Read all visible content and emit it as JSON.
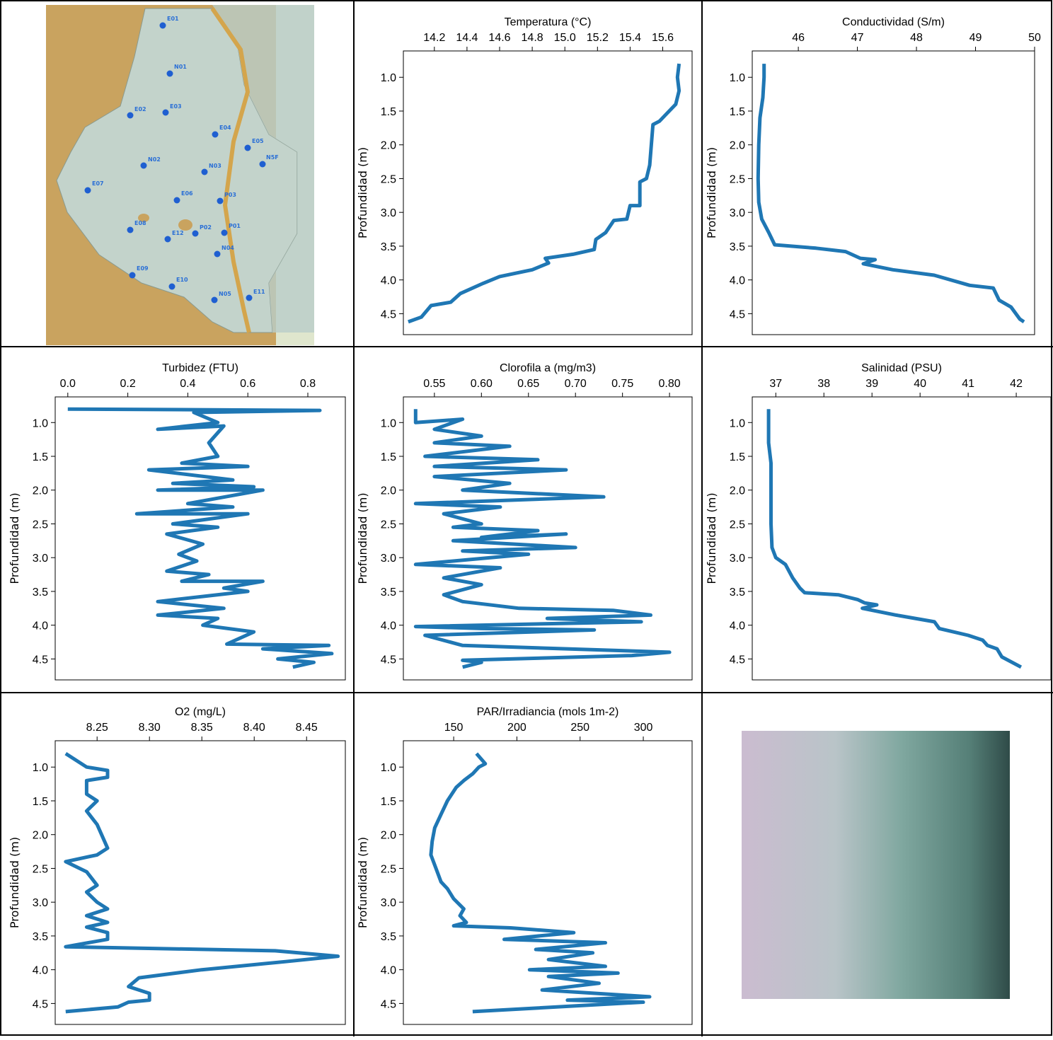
{
  "map": {
    "stations": [
      "E01",
      "N01",
      "E03",
      "E02",
      "E04",
      "E05",
      "N5F",
      "N02",
      "N03",
      "E07",
      "E06",
      "P03",
      "E08",
      "P01",
      "E12",
      "P02",
      "N04",
      "E09",
      "E10",
      "N05",
      "E11"
    ]
  },
  "chart_data": [
    {
      "type": "line",
      "xlabel": "Temperatura (°C)",
      "ylabel": "Profundidad (m)",
      "color": "#1f77b4",
      "xlim": [
        14.01,
        15.78
      ],
      "ylim": [
        4.81,
        0.61
      ],
      "xticks": [
        14.2,
        14.4,
        14.6,
        14.8,
        {
          "value": 15,
          "label": "15.0"
        },
        15.2,
        15.4,
        15.6
      ],
      "yticks": [
        {
          "value": 1,
          "label": "1.0"
        },
        1.5,
        {
          "value": 2,
          "label": "2.0"
        },
        2.5,
        {
          "value": 3,
          "label": "3.0"
        },
        3.5,
        {
          "value": 4,
          "label": "4.0"
        },
        4.5
      ],
      "x": [
        15.7,
        15.69,
        15.7,
        15.68,
        15.62,
        15.58,
        15.54,
        15.53,
        15.52,
        15.5,
        15.46,
        15.46,
        15.4,
        15.38,
        15.3,
        15.25,
        15.19,
        15.18,
        15.05,
        14.88,
        14.9,
        14.8,
        14.6,
        14.5,
        14.36,
        14.3,
        14.18,
        14.12,
        14.04
      ],
      "y": [
        0.8,
        1.0,
        1.2,
        1.4,
        1.55,
        1.65,
        1.7,
        2.0,
        2.3,
        2.5,
        2.55,
        2.9,
        2.9,
        3.1,
        3.12,
        3.3,
        3.4,
        3.55,
        3.62,
        3.68,
        3.75,
        3.85,
        3.95,
        4.05,
        4.2,
        4.33,
        4.38,
        4.55,
        4.62
      ]
    },
    {
      "type": "line",
      "xlabel": "Conductividad (S/m)",
      "ylabel": "Profundidad (m)",
      "color": "#1f77b4",
      "xlim": [
        45.22,
        50
      ],
      "ylim": [
        4.81,
        0.61
      ],
      "xticks": [
        46,
        47,
        48,
        49,
        50
      ],
      "yticks": [
        {
          "value": 1,
          "label": "1.0"
        },
        1.5,
        {
          "value": 2,
          "label": "2.0"
        },
        2.5,
        {
          "value": 3,
          "label": "3.0"
        },
        3.5,
        {
          "value": 4,
          "label": "4.0"
        },
        4.5
      ],
      "x": [
        45.42,
        45.42,
        45.4,
        45.35,
        45.33,
        45.32,
        45.33,
        45.38,
        45.5,
        45.6,
        46.3,
        46.8,
        47.05,
        47.3,
        47.1,
        47.6,
        48.3,
        48.9,
        49.3,
        49.4,
        49.6,
        49.75,
        49.82
      ],
      "y": [
        0.8,
        1.0,
        1.3,
        1.6,
        2.0,
        2.5,
        2.85,
        3.1,
        3.3,
        3.48,
        3.53,
        3.58,
        3.68,
        3.7,
        3.76,
        3.85,
        3.93,
        4.08,
        4.12,
        4.3,
        4.4,
        4.58,
        4.62
      ]
    },
    {
      "type": "line",
      "xlabel": "Turbidez (FTU)",
      "ylabel": "Profundidad (m)",
      "color": "#1f77b4",
      "xlim": [
        -0.042,
        0.925
      ],
      "ylim": [
        4.81,
        0.62
      ],
      "xticks": [
        {
          "value": 0,
          "label": "0.0"
        },
        0.2,
        0.4,
        0.6,
        0.8
      ],
      "yticks": [
        {
          "value": 1,
          "label": "1.0"
        },
        1.5,
        {
          "value": 2,
          "label": "2.0"
        },
        2.5,
        {
          "value": 3,
          "label": "3.0"
        },
        3.5,
        {
          "value": 4,
          "label": "4.0"
        },
        4.5
      ],
      "x": [
        0,
        0.84,
        0.42,
        0.5,
        0.3,
        0.52,
        0.47,
        0.5,
        0.38,
        0.6,
        0.27,
        0.55,
        0.35,
        0.62,
        0.3,
        0.65,
        0.4,
        0.55,
        0.23,
        0.6,
        0.35,
        0.5,
        0.33,
        0.45,
        0.37,
        0.43,
        0.33,
        0.47,
        0.38,
        0.65,
        0.52,
        0.6,
        0.3,
        0.52,
        0.3,
        0.5,
        0.45,
        0.62,
        0.53,
        0.87,
        0.65,
        0.88,
        0.7,
        0.82,
        0.75
      ],
      "y": [
        0.8,
        0.82,
        0.85,
        1.0,
        1.1,
        1.05,
        1.3,
        1.5,
        1.6,
        1.65,
        1.7,
        1.85,
        1.9,
        1.95,
        2.0,
        2.0,
        2.2,
        2.25,
        2.35,
        2.35,
        2.5,
        2.55,
        2.65,
        2.8,
        2.95,
        3.05,
        3.2,
        3.25,
        3.35,
        3.35,
        3.45,
        3.5,
        3.65,
        3.75,
        3.85,
        3.9,
        4.0,
        4.1,
        4.28,
        4.3,
        4.35,
        4.42,
        4.5,
        4.55,
        4.62
      ]
    },
    {
      "type": "line",
      "xlabel": "Clorofila a (mg/m3)",
      "ylabel": "Profundidad (m)",
      "color": "#1f77b4",
      "xlim": [
        0.517,
        0.824
      ],
      "ylim": [
        4.81,
        0.62
      ],
      "xticks": [
        0.55,
        {
          "value": 0.6,
          "label": "0.60"
        },
        0.65,
        {
          "value": 0.7,
          "label": "0.70"
        },
        0.75,
        {
          "value": 0.8,
          "label": "0.80"
        }
      ],
      "yticks": [
        {
          "value": 1,
          "label": "1.0"
        },
        1.5,
        {
          "value": 2,
          "label": "2.0"
        },
        2.5,
        {
          "value": 3,
          "label": "3.0"
        },
        3.5,
        {
          "value": 4,
          "label": "4.0"
        },
        4.5
      ],
      "x": [
        0.53,
        0.53,
        0.58,
        0.55,
        0.6,
        0.55,
        0.63,
        0.54,
        0.66,
        0.55,
        0.69,
        0.55,
        0.63,
        0.58,
        0.73,
        0.53,
        0.62,
        0.56,
        0.6,
        0.57,
        0.66,
        0.6,
        0.69,
        0.57,
        0.7,
        0.58,
        0.65,
        0.53,
        0.62,
        0.56,
        0.6,
        0.56,
        0.58,
        0.64,
        0.74,
        0.78,
        0.67,
        0.77,
        0.53,
        0.6,
        0.72,
        0.54,
        0.58,
        0.8,
        0.76,
        0.58,
        0.6,
        0.58
      ],
      "y": [
        0.8,
        1.0,
        0.95,
        1.1,
        1.2,
        1.3,
        1.35,
        1.5,
        1.55,
        1.65,
        1.7,
        1.8,
        1.9,
        2.0,
        2.1,
        2.2,
        2.25,
        2.35,
        2.5,
        2.55,
        2.6,
        2.7,
        2.65,
        2.75,
        2.85,
        2.9,
        2.95,
        3.1,
        3.15,
        3.3,
        3.4,
        3.55,
        3.65,
        3.75,
        3.78,
        3.85,
        3.9,
        3.95,
        4.02,
        4.05,
        4.07,
        4.15,
        4.3,
        4.4,
        4.45,
        4.52,
        4.55,
        4.62
      ]
    },
    {
      "type": "line",
      "xlabel": "Salinidad (PSU)",
      "ylabel": "Profundidad (m)",
      "color": "#1f77b4",
      "xlim": [
        36.51,
        42.72
      ],
      "ylim": [
        4.81,
        0.62
      ],
      "xticks": [
        37,
        38,
        39,
        40,
        41,
        42
      ],
      "yticks": [
        {
          "value": 1,
          "label": "1.0"
        },
        1.5,
        {
          "value": 2,
          "label": "2.0"
        },
        2.5,
        {
          "value": 3,
          "label": "3.0"
        },
        3.5,
        {
          "value": 4,
          "label": "4.0"
        },
        4.5
      ],
      "x": [
        36.85,
        36.85,
        36.85,
        36.9,
        36.9,
        36.9,
        36.92,
        37.0,
        37.2,
        37.35,
        37.5,
        37.6,
        38.3,
        38.7,
        38.85,
        39.1,
        38.8,
        39.5,
        40.3,
        40.4,
        41.0,
        41.3,
        41.4,
        41.6,
        41.7,
        42.1
      ],
      "y": [
        0.8,
        1.0,
        1.3,
        1.6,
        2.0,
        2.5,
        2.85,
        3.0,
        3.1,
        3.3,
        3.45,
        3.52,
        3.55,
        3.62,
        3.67,
        3.7,
        3.75,
        3.85,
        3.95,
        4.05,
        4.15,
        4.22,
        4.3,
        4.35,
        4.47,
        4.62
      ]
    },
    {
      "type": "line",
      "xlabel": "O2 (mg/L)",
      "ylabel": "Profundidad (m)",
      "color": "#1f77b4",
      "xlim": [
        8.21,
        8.487
      ],
      "ylim": [
        4.81,
        0.61
      ],
      "xticks": [
        8.25,
        {
          "value": 8.3,
          "label": "8.30"
        },
        8.35,
        {
          "value": 8.4,
          "label": "8.40"
        },
        8.45
      ],
      "yticks": [
        {
          "value": 1,
          "label": "1.0"
        },
        1.5,
        {
          "value": 2,
          "label": "2.0"
        },
        2.5,
        {
          "value": 3,
          "label": "3.0"
        },
        3.5,
        {
          "value": 4,
          "label": "4.0"
        },
        4.5
      ],
      "x": [
        8.22,
        8.24,
        8.26,
        8.26,
        8.24,
        8.24,
        8.25,
        8.24,
        8.25,
        8.26,
        8.25,
        8.22,
        8.24,
        8.25,
        8.24,
        8.25,
        8.26,
        8.24,
        8.26,
        8.24,
        8.26,
        8.26,
        8.22,
        8.42,
        8.48,
        8.43,
        8.35,
        8.29,
        8.28,
        8.3,
        8.3,
        8.28,
        8.27,
        8.22
      ],
      "y": [
        0.8,
        1.0,
        1.05,
        1.15,
        1.2,
        1.4,
        1.5,
        1.65,
        1.85,
        2.2,
        2.3,
        2.4,
        2.55,
        2.75,
        2.85,
        3.0,
        3.1,
        3.2,
        3.3,
        3.37,
        3.45,
        3.55,
        3.66,
        3.72,
        3.8,
        3.88,
        4.0,
        4.12,
        4.25,
        4.35,
        4.45,
        4.48,
        4.55,
        4.62
      ]
    },
    {
      "type": "line",
      "xlabel": "PAR/Irradiancia (mols 1m-2)",
      "ylabel": "Profundidad (m)",
      "color": "#1f77b4",
      "xlim": [
        110.2,
        338.6
      ],
      "ylim": [
        4.81,
        0.61
      ],
      "xticks": [
        150,
        200,
        250,
        300
      ],
      "yticks": [
        {
          "value": 1,
          "label": "1.0"
        },
        1.5,
        {
          "value": 2,
          "label": "2.0"
        },
        2.5,
        {
          "value": 3,
          "label": "3.0"
        },
        3.5,
        {
          "value": 4,
          "label": "4.0"
        },
        4.5
      ],
      "x": [
        168,
        175,
        170,
        165,
        158,
        152,
        145,
        140,
        135,
        133,
        132,
        136,
        140,
        145,
        150,
        158,
        155,
        160,
        150,
        195,
        245,
        190,
        270,
        215,
        260,
        225,
        270,
        210,
        280,
        225,
        265,
        220,
        305,
        240,
        300,
        165
      ],
      "y": [
        0.8,
        0.95,
        1.0,
        1.1,
        1.2,
        1.3,
        1.5,
        1.7,
        1.9,
        2.1,
        2.3,
        2.5,
        2.7,
        2.8,
        2.95,
        3.1,
        3.2,
        3.3,
        3.35,
        3.38,
        3.45,
        3.55,
        3.6,
        3.7,
        3.75,
        3.85,
        3.95,
        4.0,
        4.05,
        4.1,
        4.2,
        4.3,
        4.4,
        4.45,
        4.48,
        4.62
      ]
    }
  ]
}
